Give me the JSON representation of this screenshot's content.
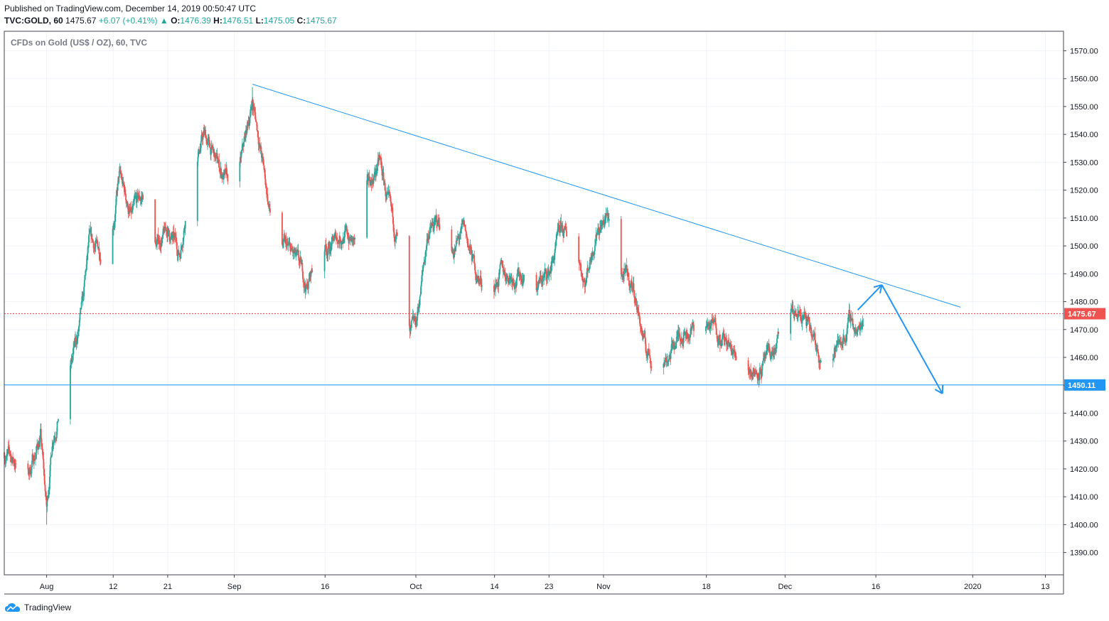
{
  "header": {
    "published": "Published on TradingView.com, December 14, 2019 00:50:47 UTC",
    "symbol": "TVC:GOLD, 60",
    "last": "1475.67",
    "change": "+6.07 (+0.41%)",
    "open_label": "O:",
    "open": "1476.39",
    "high_label": "H:",
    "high": "1476.51",
    "low_label": "L:",
    "low": "1475.05",
    "close_label": "C:",
    "close": "1475.67"
  },
  "footer": {
    "brand": "TradingView",
    "logo_icon": "tradingview-cloud-icon"
  },
  "colors": {
    "up": "#26a69a",
    "down": "#ef5350",
    "line": "#2196f3",
    "price": "#ef5350",
    "grid": "#f0f3fa"
  },
  "chart_data": {
    "type": "candlestick",
    "title": "CFDs on Gold (US$ / OZ), 60, TVC",
    "interval": "60",
    "x_ticks": [
      "Aug",
      "12",
      "21",
      "Sep",
      "16",
      "Oct",
      "14",
      "23",
      "Nov",
      "18",
      "Dec",
      "16",
      "2020",
      "13"
    ],
    "x_tick_dates": [
      "2019-08-01",
      "2019-08-12",
      "2019-08-21",
      "2019-09-01",
      "2019-09-16",
      "2019-10-01",
      "2019-10-14",
      "2019-10-23",
      "2019-11-01",
      "2019-11-18",
      "2019-12-01",
      "2019-12-16",
      "2020-01-01",
      "2020-01-13"
    ],
    "y_ticks": [
      1390,
      1400,
      1410,
      1420,
      1430,
      1440,
      1450,
      1460,
      1470,
      1480,
      1490,
      1500,
      1510,
      1520,
      1530,
      1540,
      1550,
      1560,
      1570
    ],
    "y_tick_labels": [
      "1390.00",
      "1400.00",
      "1410.00",
      "1420.00",
      "1430.00",
      "1440.00",
      "1450.00",
      "1460.00",
      "1470.00",
      "1480.00",
      "1490.00",
      "1500.00",
      "1510.00",
      "1520.00",
      "1530.00",
      "1540.00",
      "1550.00",
      "1560.00",
      "1570.00"
    ],
    "ylim": [
      1382,
      1577
    ],
    "xlim": [
      "2019-07-25",
      "2020-01-16"
    ],
    "price_path": [
      [
        "2019-07-25",
        1426
      ],
      [
        "2019-07-29",
        1418
      ],
      [
        "2019-07-31",
        1432
      ],
      [
        "2019-08-01",
        1405
      ],
      [
        "2019-08-02",
        1432
      ],
      [
        "2019-08-04",
        1450
      ],
      [
        "2019-08-06",
        1466
      ],
      [
        "2019-08-07",
        1478
      ],
      [
        "2019-08-08",
        1500
      ],
      [
        "2019-08-10",
        1498
      ],
      [
        "2019-08-12",
        1510
      ],
      [
        "2019-08-13",
        1525
      ],
      [
        "2019-08-15",
        1510
      ],
      [
        "2019-08-17",
        1518
      ],
      [
        "2019-08-19",
        1500
      ],
      [
        "2019-08-21",
        1505
      ],
      [
        "2019-08-23",
        1497
      ],
      [
        "2019-08-25",
        1530
      ],
      [
        "2019-08-27",
        1540
      ],
      [
        "2019-08-29",
        1530
      ],
      [
        "2019-08-31",
        1522
      ],
      [
        "2019-09-02",
        1528
      ],
      [
        "2019-09-04",
        1552
      ],
      [
        "2019-09-05",
        1540
      ],
      [
        "2019-09-07",
        1510
      ],
      [
        "2019-09-09",
        1500
      ],
      [
        "2019-09-11",
        1495
      ],
      [
        "2019-09-13",
        1485
      ],
      [
        "2019-09-15",
        1500
      ],
      [
        "2019-09-17",
        1500
      ],
      [
        "2019-09-19",
        1505
      ],
      [
        "2019-09-21",
        1500
      ],
      [
        "2019-09-23",
        1520
      ],
      [
        "2019-09-25",
        1530
      ],
      [
        "2019-09-27",
        1508
      ],
      [
        "2019-09-29",
        1495
      ],
      [
        "2019-09-30",
        1466
      ],
      [
        "2019-10-01",
        1470
      ],
      [
        "2019-10-03",
        1505
      ],
      [
        "2019-10-05",
        1508
      ],
      [
        "2019-10-07",
        1498
      ],
      [
        "2019-10-09",
        1505
      ],
      [
        "2019-10-11",
        1490
      ],
      [
        "2019-10-13",
        1483
      ],
      [
        "2019-10-15",
        1490
      ],
      [
        "2019-10-17",
        1490
      ],
      [
        "2019-10-19",
        1490
      ],
      [
        "2019-10-21",
        1486
      ],
      [
        "2019-10-23",
        1490
      ],
      [
        "2019-10-25",
        1505
      ],
      [
        "2019-10-27",
        1500
      ],
      [
        "2019-10-29",
        1488
      ],
      [
        "2019-10-31",
        1508
      ],
      [
        "2019-11-02",
        1510
      ],
      [
        "2019-11-04",
        1490
      ],
      [
        "2019-11-06",
        1485
      ],
      [
        "2019-11-08",
        1462
      ],
      [
        "2019-11-10",
        1458
      ],
      [
        "2019-11-12",
        1462
      ],
      [
        "2019-11-14",
        1470
      ],
      [
        "2019-11-16",
        1470
      ],
      [
        "2019-11-18",
        1472
      ],
      [
        "2019-11-20",
        1470
      ],
      [
        "2019-11-22",
        1462
      ],
      [
        "2019-11-24",
        1458
      ],
      [
        "2019-11-26",
        1456
      ],
      [
        "2019-11-28",
        1458
      ],
      [
        "2019-11-30",
        1465
      ],
      [
        "2019-12-02",
        1475
      ],
      [
        "2019-12-04",
        1475
      ],
      [
        "2019-12-06",
        1463
      ],
      [
        "2019-12-08",
        1460
      ],
      [
        "2019-12-10",
        1465
      ],
      [
        "2019-12-12",
        1474
      ],
      [
        "2019-12-13",
        1468
      ],
      [
        "2019-12-14",
        1475.67
      ]
    ],
    "extremes": {
      "low": [
        "2019-08-01",
        1400
      ],
      "high": [
        "2019-09-04",
        1557
      ]
    },
    "current_price": 1475.67,
    "current_price_label": "1475.67",
    "annotations": {
      "trendline": {
        "from": [
          "2019-09-04",
          1558
        ],
        "to": [
          "2019-12-30",
          1478
        ]
      },
      "support_line": {
        "y": 1450.11,
        "label": "1450.11"
      },
      "arrow_up": {
        "from": [
          "2019-12-13",
          1477
        ],
        "to": [
          "2019-12-17",
          1486
        ]
      },
      "arrow_down": {
        "from": [
          "2019-12-17",
          1486
        ],
        "to": [
          "2019-12-27",
          1447
        ]
      }
    }
  }
}
